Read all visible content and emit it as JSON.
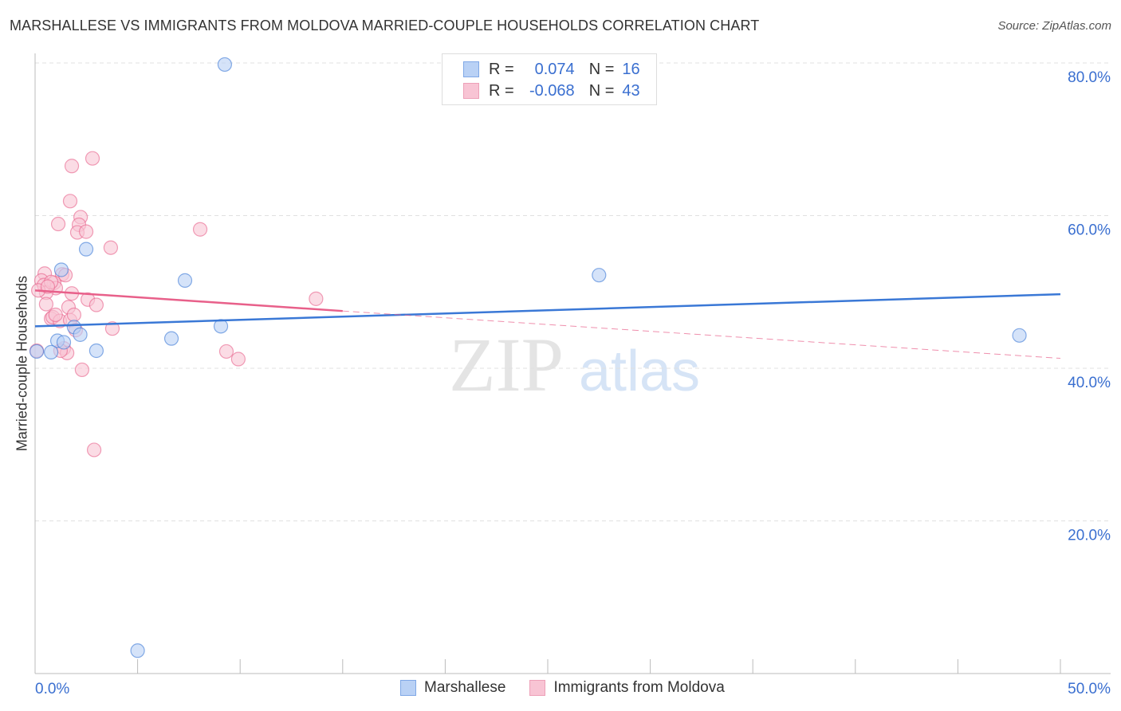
{
  "title": "MARSHALLESE VS IMMIGRANTS FROM MOLDOVA MARRIED-COUPLE HOUSEHOLDS CORRELATION CHART",
  "source": "Source: ZipAtlas.com",
  "watermark": {
    "zip": "ZIP",
    "atlas": "atlas"
  },
  "legend": {
    "rows": [
      {
        "r_label": "R =",
        "r": "0.074",
        "n_label": "N =",
        "n": "16"
      },
      {
        "r_label": "R =",
        "r": "-0.068",
        "n_label": "N =",
        "n": "43"
      }
    ]
  },
  "colors": {
    "blue": "#3a78d6",
    "blue_fill": "#b9d1f5",
    "pink": "#e8608a",
    "pink_fill": "#f8c4d4",
    "text_blue": "#3a6fd0"
  },
  "chart_data": {
    "type": "scatter",
    "title": "MARSHALLESE VS IMMIGRANTS FROM MOLDOVA MARRIED-COUPLE HOUSEHOLDS CORRELATION CHART",
    "xlabel": "",
    "ylabel": "Married-couple Households",
    "xlim": [
      0,
      50
    ],
    "ylim": [
      0,
      80
    ],
    "x_tick_labels": [
      "0.0%",
      "50.0%"
    ],
    "y_ticks": [
      20,
      40,
      60,
      80
    ],
    "y_tick_labels": [
      "20.0%",
      "40.0%",
      "60.0%",
      "80.0%"
    ],
    "grid": true,
    "legend_position": "top-center",
    "series": [
      {
        "name": "Marshallese",
        "color": "#3a78d6",
        "trend": {
          "x": [
            0,
            50
          ],
          "y": [
            45.5,
            49.7
          ]
        },
        "points": [
          [
            9.25,
            79.8
          ],
          [
            5.0,
            3.0
          ],
          [
            2.49,
            55.6
          ],
          [
            1.28,
            52.9
          ],
          [
            7.31,
            51.5
          ],
          [
            27.5,
            52.2
          ],
          [
            48.0,
            44.3
          ],
          [
            6.65,
            43.9
          ],
          [
            9.06,
            45.5
          ],
          [
            2.99,
            42.3
          ],
          [
            1.9,
            45.4
          ],
          [
            1.09,
            43.6
          ],
          [
            0.78,
            42.1
          ],
          [
            0.08,
            42.2
          ],
          [
            1.4,
            43.4
          ],
          [
            2.2,
            44.4
          ]
        ]
      },
      {
        "name": "Immigrants from Moldova",
        "color": "#e8608a",
        "trend": {
          "x": [
            0,
            15,
            50
          ],
          "y": [
            50.2,
            47.5,
            41.3
          ]
        },
        "points": [
          [
            2.8,
            67.5
          ],
          [
            1.79,
            66.5
          ],
          [
            1.71,
            61.9
          ],
          [
            2.22,
            59.8
          ],
          [
            1.13,
            58.9
          ],
          [
            2.14,
            58.8
          ],
          [
            2.06,
            57.8
          ],
          [
            2.49,
            57.9
          ],
          [
            8.05,
            58.2
          ],
          [
            3.69,
            55.8
          ],
          [
            1.32,
            52.3
          ],
          [
            0.47,
            52.4
          ],
          [
            0.31,
            51.5
          ],
          [
            0.93,
            51.2
          ],
          [
            1.01,
            50.5
          ],
          [
            0.43,
            50.9
          ],
          [
            0.54,
            49.9
          ],
          [
            1.79,
            49.8
          ],
          [
            2.57,
            49.0
          ],
          [
            13.7,
            49.1
          ],
          [
            2.99,
            48.3
          ],
          [
            0.54,
            48.4
          ],
          [
            1.63,
            48.0
          ],
          [
            0.78,
            46.5
          ],
          [
            0.86,
            46.7
          ],
          [
            1.21,
            46.2
          ],
          [
            1.71,
            46.3
          ],
          [
            1.98,
            45.0
          ],
          [
            3.77,
            45.2
          ],
          [
            1.4,
            42.6
          ],
          [
            1.56,
            42.0
          ],
          [
            1.24,
            42.3
          ],
          [
            9.33,
            42.2
          ],
          [
            9.91,
            41.2
          ],
          [
            2.29,
            39.8
          ],
          [
            2.88,
            29.3
          ],
          [
            0.08,
            42.3
          ],
          [
            0.16,
            50.2
          ],
          [
            0.78,
            51.3
          ],
          [
            1.48,
            52.2
          ],
          [
            0.62,
            50.7
          ],
          [
            1.9,
            47.0
          ],
          [
            1.0,
            47.0
          ]
        ]
      }
    ]
  }
}
